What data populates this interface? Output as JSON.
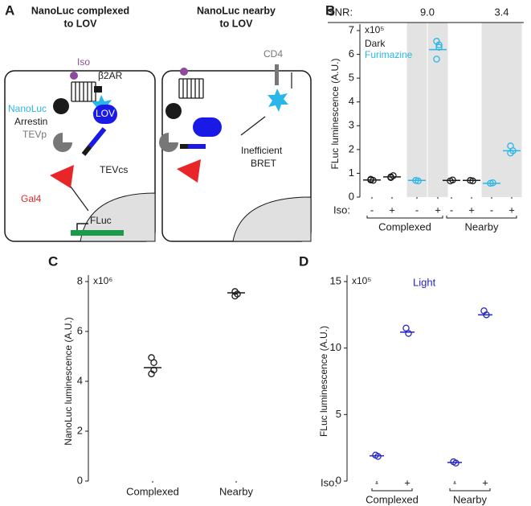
{
  "panel_labels": [
    "A",
    "B",
    "C",
    "D"
  ],
  "diagram": {
    "left_title": [
      "NanoLuc complexed",
      "to LOV"
    ],
    "right_title": [
      "NanoLuc nearby",
      "to LOV"
    ],
    "labels": {
      "iso": "Iso",
      "receptor": "β2AR",
      "nanoluc": "NanoLuc",
      "arrestin": "Arrestin",
      "tevp": "TEVp",
      "lov": "LOV",
      "tevcs": "TEVcs",
      "gal4": "Gal4",
      "fluc": "FLuc",
      "cd4": "CD4",
      "inefficient": "Inefficient",
      "bret": "BRET"
    }
  },
  "chart_data": [
    {
      "type": "strip",
      "ylabel": "FLuc luminescence (A.U.)",
      "multiplier": "x10⁵",
      "ylim": [
        0,
        7
      ],
      "yticks": [
        0,
        1,
        2,
        3,
        4,
        5,
        6,
        7
      ],
      "category_axis_label": "Iso:",
      "categories": [
        "-",
        "+",
        "-",
        "+",
        "-",
        "+",
        "-",
        "+"
      ],
      "groups": [
        "Complexed",
        "Nearby"
      ],
      "snr": {
        "label": "SNR:",
        "values": [
          9.0,
          3.4
        ],
        "value_labels": [
          "9.0",
          "3.4"
        ]
      },
      "shade": true,
      "series": [
        {
          "name": "Dark",
          "color": "#1a1a1a",
          "values": [
            0.72,
            0.85,
            null,
            null,
            0.7,
            0.7,
            null,
            null
          ],
          "replicates": [
            [
              0.72,
              0.7,
              0.75
            ],
            [
              0.85,
              0.9,
              0.82
            ],
            null,
            null,
            [
              0.68,
              0.72
            ],
            [
              0.7,
              0.68
            ],
            null,
            null
          ]
        },
        {
          "name": "Furimazine",
          "color": "#29b6e8",
          "values": [
            null,
            null,
            0.7,
            6.2,
            null,
            null,
            0.58,
            1.95
          ],
          "replicates": [
            null,
            null,
            [
              0.7,
              0.68
            ],
            [
              6.55,
              6.4,
              5.8,
              6.3
            ],
            null,
            null,
            [
              0.58,
              0.6
            ],
            [
              2.15,
              1.95,
              1.85
            ]
          ]
        }
      ]
    },
    {
      "type": "strip",
      "ylabel": "NanoLuc luminescence (A.U.)",
      "multiplier": "x10⁶",
      "ylim": [
        0,
        8
      ],
      "yticks": [
        0,
        2,
        4,
        6,
        8
      ],
      "categories": [
        "Complexed",
        "Nearby"
      ],
      "series": [
        {
          "color": "#1a1a1a",
          "values": [
            4.55,
            7.55
          ],
          "replicates": [
            [
              4.95,
              4.75,
              4.3,
              4.45
            ],
            [
              7.6,
              7.5,
              7.42
            ]
          ]
        }
      ]
    },
    {
      "type": "strip",
      "ylabel": "FLuc luminescence (A.U.)",
      "multiplier": "x10⁵",
      "annotation": "Light",
      "ylim": [
        0,
        15
      ],
      "yticks": [
        0,
        5,
        10,
        15
      ],
      "category_axis_label": "Iso:",
      "categories": [
        "-",
        "+",
        "-",
        "+"
      ],
      "groups": [
        "Complexed",
        "Nearby"
      ],
      "series": [
        {
          "color": "#2626c2",
          "values": [
            1.9,
            11.2,
            1.4,
            12.5
          ],
          "replicates": [
            [
              1.95,
              1.85
            ],
            [
              11.5,
              11.1
            ],
            [
              1.45,
              1.35
            ],
            [
              12.8,
              12.5
            ]
          ]
        }
      ]
    }
  ]
}
